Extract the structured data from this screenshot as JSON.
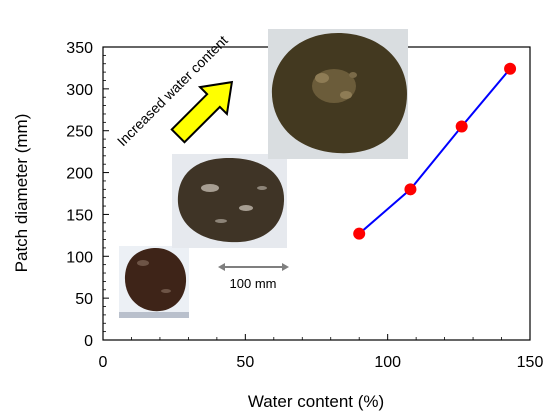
{
  "chart_data": {
    "type": "scatter",
    "title": "",
    "xlabel": "Water content (%)",
    "ylabel": "Patch diameter (mm)",
    "xlim": [
      0,
      150
    ],
    "ylim": [
      0,
      350
    ],
    "xticks": [
      "0",
      "50",
      "100",
      "150"
    ],
    "yticks": [
      "0",
      "50",
      "100",
      "150",
      "200",
      "250",
      "300",
      "350"
    ],
    "grid": false,
    "series": [
      {
        "x": [
          90,
          108,
          126,
          143
        ],
        "y": [
          127,
          180,
          255,
          324
        ],
        "color": "#0000ff",
        "marker_color": "#ff0000"
      }
    ],
    "annotations": {
      "arrow_text": "Increased water content",
      "arrow_color": "#ffff00",
      "scale_bar_text": "100 mm"
    }
  }
}
